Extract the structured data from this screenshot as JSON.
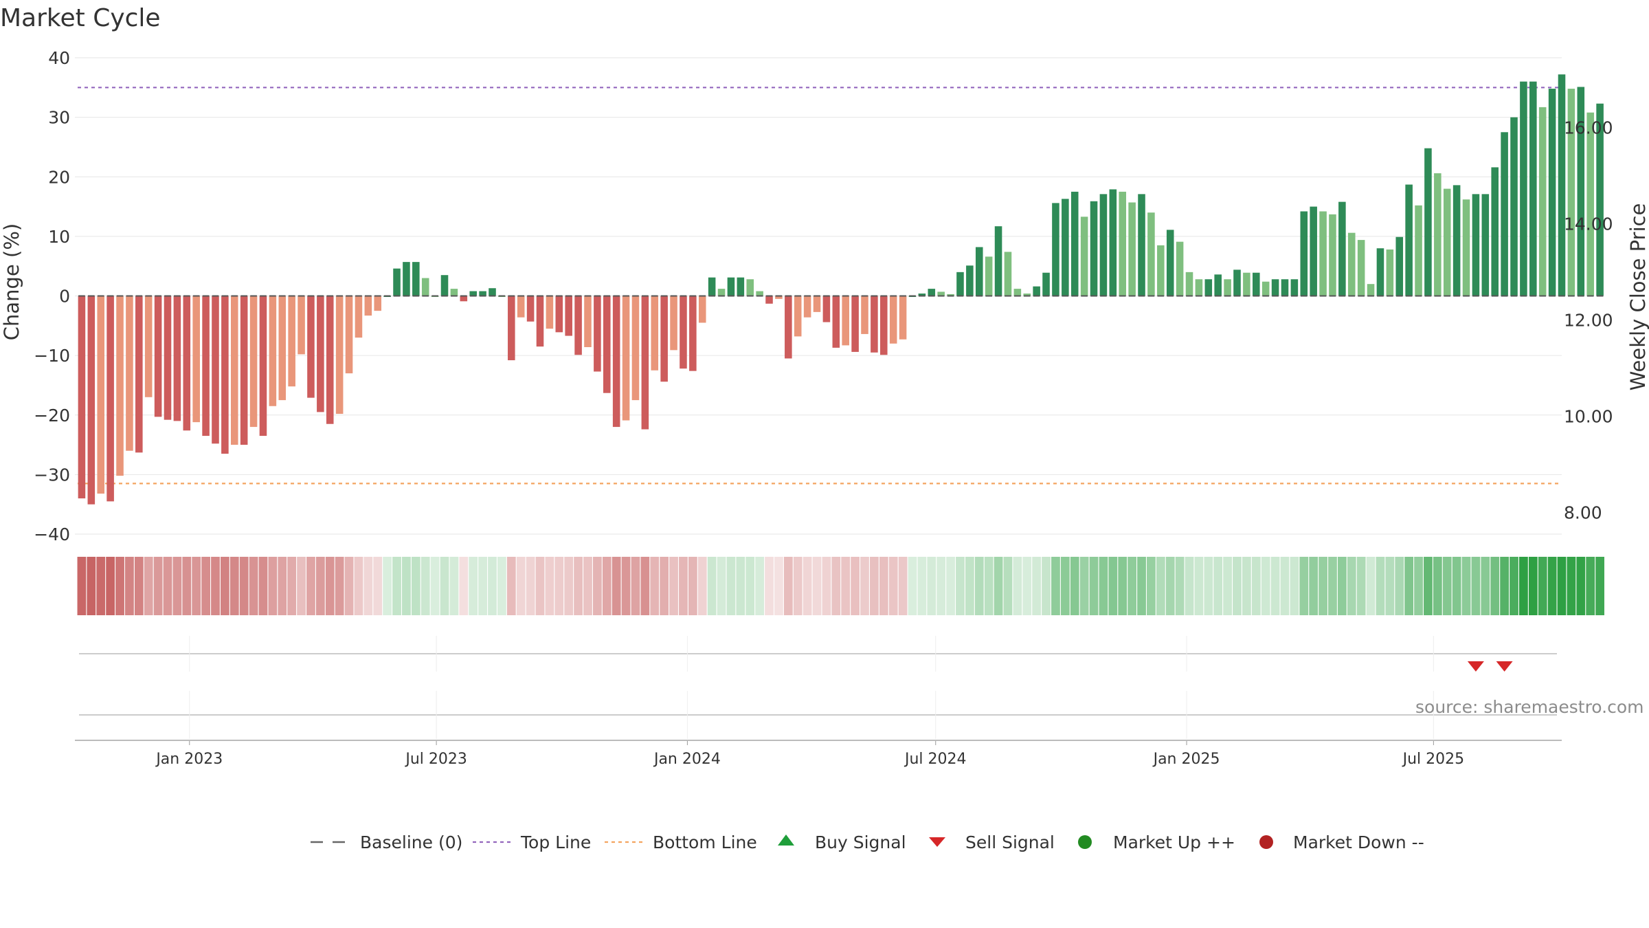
{
  "chart_data": {
    "type": "bar",
    "title": "Market Cycle",
    "source": "source: sharemaestro.com",
    "ylabel_left": "Change (%)",
    "ylabel_right": "Weekly Close Price",
    "ylim_left": [
      -40,
      40
    ],
    "yticks_left": [
      "40",
      "30",
      "20",
      "10",
      "0",
      "−10",
      "−20",
      "−30",
      "−40"
    ],
    "yticks_left_values": [
      40,
      30,
      20,
      10,
      0,
      -10,
      -20,
      -30,
      -40
    ],
    "ylim_right": [
      7.55,
      17.45
    ],
    "yticks_right": [
      "16.00",
      "14.00",
      "12.00",
      "10.00",
      "8.00"
    ],
    "yticks_right_values": [
      16,
      14,
      12,
      10,
      8
    ],
    "x_start": "2022-10-09",
    "x_end": "2025-10-03",
    "xticks": [
      {
        "label": "Jan 2023",
        "date": "2023-01-01"
      },
      {
        "label": "Jul 2023",
        "date": "2023-07-01"
      },
      {
        "label": "Jan 2024",
        "date": "2024-01-01"
      },
      {
        "label": "Jul 2024",
        "date": "2024-07-01"
      },
      {
        "label": "Jan 2025",
        "date": "2025-01-01"
      },
      {
        "label": "Jul 2025",
        "date": "2025-07-01"
      }
    ],
    "grid": true,
    "top_line": 35,
    "bottom_line": -31.5,
    "first_week": "2022-10-14",
    "values": [
      -34,
      -35,
      -33.2,
      -34.5,
      -30.2,
      -26,
      -26.3,
      -17,
      -20.3,
      -20.8,
      -21,
      -22.6,
      -21.2,
      -23.5,
      -24.8,
      -26.5,
      -25,
      -25,
      -22,
      -23.5,
      -18.5,
      -17.5,
      -15.2,
      -9.8,
      -17.1,
      -19.5,
      -21.5,
      -19.8,
      -13,
      -7,
      -3.3,
      -2.5,
      0,
      4.6,
      5.7,
      5.7,
      3,
      0,
      3.5,
      1.2,
      -0.9,
      0.8,
      0.8,
      1.3,
      0,
      -10.8,
      -3.6,
      -4.3,
      -8.5,
      -5.5,
      -6.1,
      -6.7,
      -9.9,
      -8.6,
      -12.7,
      -16.3,
      -22,
      -20.9,
      -17.5,
      -22.4,
      -12.5,
      -14.4,
      -9.1,
      -12.2,
      -12.6,
      -4.5,
      3.1,
      1.2,
      3.1,
      3.1,
      2.8,
      0.8,
      -1.3,
      -0.5,
      -10.5,
      -6.8,
      -3.6,
      -2.7,
      -4.4,
      -8.7,
      -8.3,
      -9.4,
      -6.4,
      -9.5,
      -9.9,
      -8,
      -7.3,
      0,
      0.4,
      1.2,
      0.7,
      0.3,
      4,
      5.1,
      8.2,
      6.6,
      11.7,
      7.4,
      1.2,
      0.4,
      1.6,
      3.9,
      15.6,
      16.3,
      17.5,
      13.3,
      15.9,
      17.1,
      17.9,
      17.5,
      15.7,
      17.1,
      14,
      8.5,
      11.1,
      9.1,
      4,
      2.8,
      2.8,
      3.6,
      2.8,
      4.4,
      3.9,
      3.9,
      2.4,
      2.8,
      2.8,
      2.8,
      14.2,
      15,
      14.2,
      13.7,
      15.8,
      10.6,
      9.4,
      2,
      8,
      7.8,
      9.9,
      18.7,
      15.2,
      24.8,
      20.6,
      18,
      18.6,
      16.2,
      17.1,
      17.1,
      21.6,
      27.5,
      30,
      36,
      36,
      31.7,
      34.8,
      37.2,
      34.8,
      35.1,
      30.8,
      32.3
    ],
    "series": [
      {
        "name": "Baseline (0)",
        "style": "dashed",
        "color": "#666666"
      },
      {
        "name": "Top Line",
        "style": "dotted",
        "color": "#9467bd",
        "value": 35
      },
      {
        "name": "Bottom Line",
        "style": "dotted",
        "color": "#f4a460",
        "value": -31.5
      },
      {
        "name": "Buy Signal",
        "marker": "triangle-up",
        "color": "#1f9e3a"
      },
      {
        "name": "Sell Signal",
        "marker": "triangle-down",
        "color": "#d62728",
        "dates": [
          "2025-08-01",
          "2025-08-22"
        ]
      },
      {
        "name": "Market Up ++",
        "marker": "circle",
        "color": "#228b22"
      },
      {
        "name": "Market Down --",
        "marker": "circle",
        "color": "#b22222"
      }
    ],
    "legend_position": "bottom-center",
    "colors": {
      "up_strong": "#2e8b57",
      "up_weak": "#7fbf7f",
      "down_strong": "#cd5c5c",
      "down_weak": "#e9967a",
      "top_line": "#9467bd",
      "bottom_line": "#f4a460",
      "sell": "#d62728",
      "buy": "#1f9e3a",
      "grid": "#e6e6e6"
    }
  }
}
